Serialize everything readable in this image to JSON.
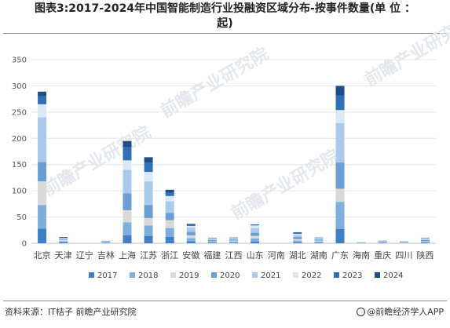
{
  "title": "图表3:2017-2024年中国智能制造行业投融资区域分布-按事件数量(单 位 ：起)",
  "title_line1": "图表3:2017-2024年中国智能制造行业投融资区域分布-按事件数量(单 位 ：",
  "title_line2": "起)",
  "footer": {
    "source": "资料来源：IT桔子 前瞻产业研究院",
    "brand": "@前瞻经济学人APP"
  },
  "watermark": "前瞻产业研究院",
  "colors": {
    "2017": "#3f7fc6",
    "2018": "#7eaedc",
    "2019": "#d9d9d9",
    "2020": "#6a9fd4",
    "2021": "#a9caeb",
    "2022": "#dbe8f5",
    "2023": "#3070b7",
    "2024": "#1f4e87"
  },
  "chart_data": {
    "type": "bar",
    "stacked": true,
    "categories": [
      "北京",
      "天津",
      "辽宁",
      "吉林",
      "上海",
      "江苏",
      "浙江",
      "安徽",
      "福建",
      "江西",
      "山东",
      "河南",
      "湖北",
      "湖南",
      "广东",
      "海南",
      "重庆",
      "四川",
      "陕西"
    ],
    "ylim": [
      0,
      350
    ],
    "yticks": [
      0,
      50,
      100,
      150,
      200,
      250,
      300,
      350
    ],
    "grid": true,
    "legend_position": "bottom",
    "series": [
      {
        "name": "2017",
        "values": [
          28,
          2,
          0,
          1,
          15,
          14,
          12,
          4,
          1,
          1,
          3,
          0,
          2,
          1,
          27,
          0,
          1,
          0,
          1
        ]
      },
      {
        "name": "2018",
        "values": [
          45,
          2,
          0,
          1,
          25,
          20,
          17,
          6,
          2,
          2,
          6,
          0,
          3,
          2,
          52,
          0,
          1,
          1,
          2
        ]
      },
      {
        "name": "2019",
        "values": [
          45,
          2,
          0,
          1,
          23,
          14,
          15,
          5,
          1,
          2,
          5,
          0,
          3,
          2,
          25,
          0,
          1,
          1,
          1
        ]
      },
      {
        "name": "2020",
        "values": [
          37,
          1,
          0,
          1,
          32,
          25,
          14,
          7,
          2,
          2,
          6,
          0,
          4,
          2,
          50,
          1,
          1,
          1,
          2
        ]
      },
      {
        "name": "2021",
        "values": [
          85,
          2,
          0,
          1,
          45,
          45,
          22,
          8,
          2,
          2,
          9,
          0,
          4,
          2,
          75,
          1,
          1,
          1,
          2
        ]
      },
      {
        "name": "2022",
        "values": [
          25,
          1,
          0,
          0,
          18,
          18,
          10,
          3,
          1,
          1,
          5,
          0,
          2,
          1,
          25,
          0,
          1,
          1,
          1
        ]
      },
      {
        "name": "2023",
        "values": [
          15,
          1,
          0,
          0,
          25,
          18,
          6,
          3,
          1,
          1,
          2,
          0,
          2,
          1,
          28,
          0,
          0,
          0,
          1
        ]
      },
      {
        "name": "2024",
        "values": [
          9,
          1,
          0,
          0,
          12,
          10,
          6,
          1,
          0,
          0,
          0,
          0,
          1,
          0,
          18,
          0,
          0,
          0,
          0
        ]
      }
    ]
  }
}
